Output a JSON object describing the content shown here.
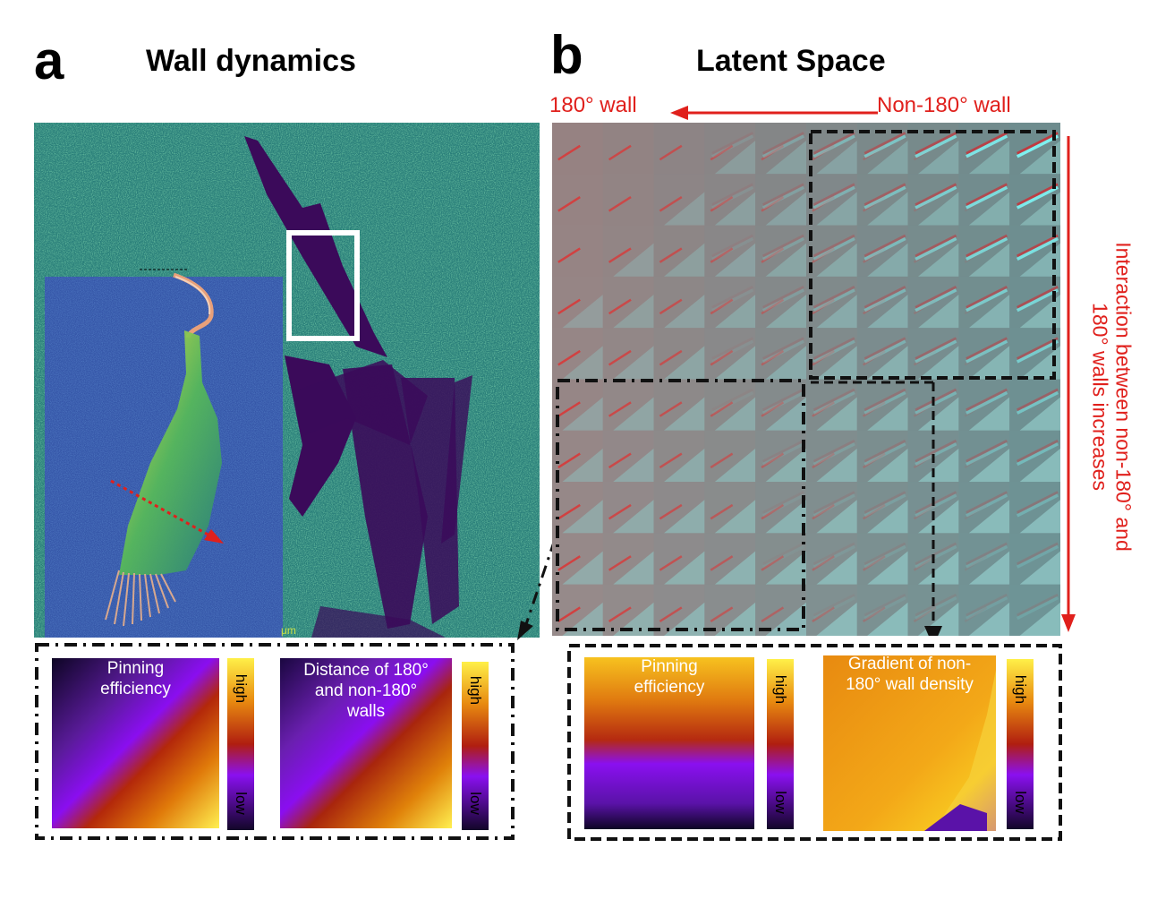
{
  "panel_a": {
    "letter": "a",
    "title": "Wall dynamics",
    "scale_label": "μm",
    "maps": [
      {
        "label_lines": [
          "Pinning",
          "efficiency"
        ]
      },
      {
        "label_lines": [
          "Distance of 180°",
          "and non-180°",
          "walls"
        ]
      }
    ],
    "colorbar": {
      "high": "high",
      "low": "low"
    }
  },
  "panel_b": {
    "letter": "b",
    "title": "Latent Space",
    "top_left_label": "180° wall",
    "top_right_label": "Non-180° wall",
    "side_label_lines": [
      "Interaction between non-180° and",
      "180° walls increases"
    ],
    "grid": {
      "rows": 10,
      "cols": 10
    },
    "maps": [
      {
        "label_lines": [
          "Pinning",
          "efficiency"
        ]
      },
      {
        "label_lines": [
          "Gradient of non-",
          "180° wall density"
        ]
      }
    ],
    "colorbar": {
      "high": "high",
      "low": "low"
    }
  },
  "colors": {
    "annotation_red": "#e0201c",
    "map_teal": "#2a7f7a",
    "map_dark": "#3b0a5a",
    "inset_blue": "#3556a8"
  }
}
